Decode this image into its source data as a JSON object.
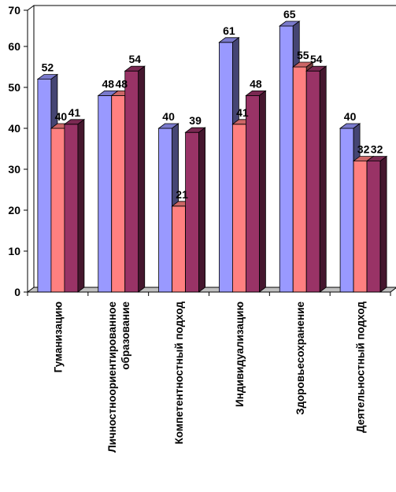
{
  "chart_data": {
    "type": "bar",
    "title": "",
    "xlabel": "",
    "ylabel": "",
    "ylim": [
      0,
      70
    ],
    "yticks": [
      0,
      10,
      20,
      30,
      40,
      50,
      60,
      70
    ],
    "grid": false,
    "legend": "none",
    "style": "3d-clustered",
    "categories": [
      [
        "Гуманизацию"
      ],
      [
        "Личностноориентированное",
        "образование"
      ],
      [
        "Компетентностный подход"
      ],
      [
        "Индивидуализацию"
      ],
      [
        "Здоровьесохранение"
      ],
      [
        "Деятельностный подход"
      ]
    ],
    "series": [
      {
        "color": "#9999ff",
        "values": [
          52,
          48,
          40,
          61,
          65,
          40
        ]
      },
      {
        "color": "#ff8080",
        "values": [
          40,
          48,
          21,
          41,
          55,
          32
        ]
      },
      {
        "color": "#993366",
        "values": [
          41,
          54,
          39,
          48,
          54,
          32
        ]
      }
    ]
  }
}
